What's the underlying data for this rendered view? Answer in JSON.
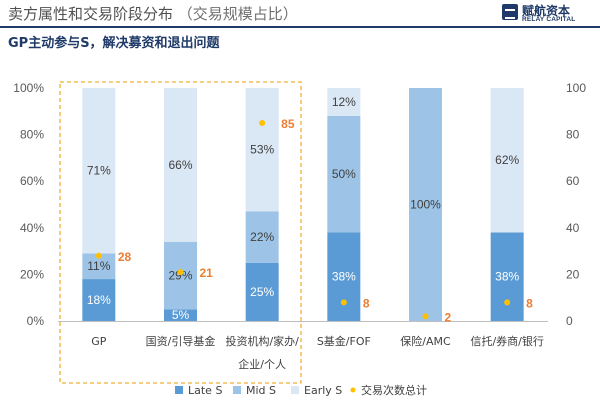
{
  "header": {
    "title": "卖方属性和交易阶段分布",
    "title_note": "（交易规模占比）",
    "subtitle": "GP主动参与S，解决募资和退出问题",
    "brand_cn": "赋航资本",
    "brand_en": "RELAY CAPITAL"
  },
  "chart_data": {
    "type": "bar",
    "stacked": true,
    "categories": [
      "GP",
      "国资/引导基金",
      "投资机构/家办/企业/个人",
      "S基金/FOF",
      "保险/AMC",
      "信托/券商/银行"
    ],
    "category_lines": [
      [
        "GP"
      ],
      [
        "国资/引导基金"
      ],
      [
        "投资机构/家办/",
        "企业/个人"
      ],
      [
        "S基金/FOF"
      ],
      [
        "保险/AMC"
      ],
      [
        "信托/券商/银行"
      ]
    ],
    "series": [
      {
        "name": "Late S",
        "values": [
          18,
          5,
          25,
          38,
          0,
          38
        ],
        "labels": [
          "18%",
          "5%",
          "25%",
          "38%",
          "",
          "38%"
        ],
        "color": "#5b9bd5"
      },
      {
        "name": "Mid S",
        "values": [
          11,
          29,
          22,
          50,
          100,
          0
        ],
        "labels": [
          "11%",
          "29%",
          "22%",
          "50%",
          "100%",
          ""
        ],
        "color": "#9dc3e6"
      },
      {
        "name": "Early S",
        "values": [
          71,
          66,
          53,
          12,
          0,
          62
        ],
        "labels": [
          "71%",
          "66%",
          "53%",
          "12%",
          "",
          "62%"
        ],
        "color": "#dae7f5"
      }
    ],
    "secondary_series": {
      "name": "交易次数总计",
      "values": [
        28,
        21,
        85,
        8,
        2,
        8
      ],
      "labels": [
        "28",
        "21",
        "85",
        "8",
        "2",
        "8"
      ],
      "color": "#ffc000",
      "label_color": "#ed7d31"
    },
    "y_left": {
      "min": 0,
      "max": 100,
      "ticks": [
        "0%",
        "20%",
        "40%",
        "60%",
        "80%",
        "100%"
      ]
    },
    "y_right": {
      "min": 0,
      "max": 100,
      "ticks": [
        "0",
        "20",
        "40",
        "60",
        "80",
        "100"
      ]
    },
    "highlight_categories": [
      0,
      2
    ],
    "legend_position": "bottom"
  }
}
